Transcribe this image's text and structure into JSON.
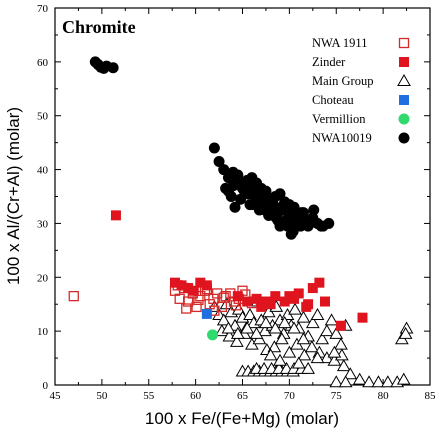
{
  "chart_data": {
    "type": "scatter",
    "title": "Chromite",
    "xlabel": "100 x Fe/(Fe+Mg) (molar)",
    "ylabel": "100 x Al/(Cr+Al) (molar)",
    "xlim": [
      45,
      85
    ],
    "ylim": [
      0,
      70
    ],
    "xticks": [
      "45",
      "50",
      "55",
      "60",
      "65",
      "70",
      "75",
      "80",
      "85"
    ],
    "yticks": [
      "0",
      "10",
      "20",
      "30",
      "40",
      "50",
      "60",
      "70"
    ],
    "legend_position": "top-right",
    "series": [
      {
        "name": "NWA 1911",
        "marker": "open-square",
        "color": "#d42a2a",
        "x": [
          47.0,
          57.8,
          58.3,
          58.8,
          59.2,
          59.7,
          60.1,
          60.5,
          61.0,
          61.5,
          61.9,
          62.3,
          62.8,
          63.2,
          63.7,
          64.1,
          64.6,
          65.0,
          58.1,
          59.0,
          60.3,
          61.2,
          62.0,
          63.0,
          64.3,
          65.3,
          66.0
        ],
        "y": [
          16.5,
          17.5,
          16.0,
          18.0,
          15.5,
          17.0,
          14.5,
          16.5,
          17.5,
          15.0,
          16.0,
          17.0,
          14.5,
          16.5,
          17.0,
          15.5,
          16.0,
          17.5,
          18.5,
          14.2,
          15.8,
          17.8,
          13.8,
          16.2,
          14.8,
          16.8,
          15.2
        ]
      },
      {
        "name": "Zinder",
        "marker": "filled-square",
        "color": "#e0141e",
        "x": [
          51.5,
          57.8,
          58.5,
          59.2,
          59.8,
          60.5,
          61.2,
          66.5,
          67.5,
          68.5,
          69.5,
          70.5,
          71.0,
          71.8,
          72.5,
          73.2,
          75.5,
          77.8,
          65.5,
          64.5,
          67.0,
          68.0,
          70.0,
          72.0,
          73.8
        ],
        "y": [
          31.5,
          19.0,
          18.5,
          18.0,
          17.5,
          19.0,
          18.5,
          16.0,
          15.5,
          16.5,
          15.5,
          16.0,
          17.0,
          14.5,
          18.0,
          19.0,
          11.0,
          12.5,
          15.5,
          16.5,
          14.5,
          15.0,
          16.5,
          15.0,
          15.5
        ]
      },
      {
        "name": "Main Group",
        "marker": "open-triangle",
        "color": "#000000",
        "x": [
          62.0,
          62.5,
          63.0,
          63.3,
          63.8,
          64.2,
          64.6,
          65.0,
          65.4,
          65.8,
          66.2,
          66.6,
          67.0,
          67.4,
          67.8,
          68.2,
          68.6,
          69.0,
          69.4,
          69.8,
          70.2,
          70.6,
          71.0,
          71.5,
          72.0,
          72.5,
          73.0,
          73.5,
          74.0,
          74.5,
          75.0,
          75.5,
          76.0,
          62.8,
          63.6,
          64.4,
          65.2,
          66.0,
          66.8,
          67.6,
          68.4,
          69.2,
          70.0,
          70.8,
          71.6,
          72.4,
          73.2,
          74.0,
          74.8,
          75.6,
          65.0,
          65.6,
          66.2,
          66.8,
          67.4,
          68.0,
          68.6,
          69.2,
          69.8,
          70.4,
          66.5,
          67.3,
          68.1,
          68.9,
          69.7,
          70.5,
          71.3,
          63.5,
          64.5,
          65.5,
          66.5,
          67.5,
          68.5,
          69.5,
          70.5,
          71.5,
          74.8,
          75.8,
          76.5,
          77.5,
          78.5,
          79.5,
          80.5,
          81.5,
          82.2,
          82.5,
          82.0,
          82.4,
          75.0,
          76.0,
          71.0,
          72.0,
          73.0,
          68.0,
          69.0
        ],
        "y": [
          14.5,
          13.0,
          12.0,
          15.0,
          13.5,
          11.0,
          14.0,
          12.5,
          10.5,
          13.0,
          11.5,
          15.5,
          12.0,
          10.0,
          13.5,
          11.0,
          14.5,
          12.0,
          9.5,
          13.0,
          11.0,
          14.0,
          10.5,
          12.5,
          9.0,
          11.5,
          13.0,
          8.5,
          10.0,
          12.0,
          9.5,
          7.5,
          11.0,
          10.0,
          9.0,
          8.0,
          9.5,
          7.5,
          8.5,
          6.5,
          7.0,
          8.5,
          6.0,
          7.5,
          5.5,
          7.0,
          6.0,
          5.0,
          4.5,
          5.5,
          2.5,
          2.5,
          2.5,
          2.5,
          2.5,
          2.5,
          2.5,
          2.5,
          2.5,
          2.5,
          3.0,
          3.0,
          3.0,
          3.0,
          3.0,
          3.0,
          3.0,
          10.5,
          9.5,
          10.5,
          9.5,
          11.5,
          10.5,
          11.5,
          10.5,
          8.5,
          6.0,
          3.5,
          2.0,
          1.0,
          0.5,
          0.5,
          0.5,
          0.5,
          1.0,
          10.5,
          8.5,
          9.5,
          0.5,
          0.5,
          4.0,
          3.0,
          5.0,
          5.5,
          4.5
        ]
      },
      {
        "name": "Choteau",
        "marker": "filled-square",
        "color": "#1f6fe0",
        "x": [
          61.2
        ],
        "y": [
          13.2
        ]
      },
      {
        "name": "Vermillion",
        "marker": "filled-circle",
        "color": "#2fd96f",
        "x": [
          61.8
        ],
        "y": [
          9.3
        ]
      },
      {
        "name": "NWA10019",
        "marker": "filled-circle",
        "color": "#000000",
        "x": [
          49.3,
          49.6,
          49.9,
          50.2,
          50.5,
          51.2,
          62.0,
          62.5,
          63.0,
          63.5,
          64.0,
          64.5,
          65.0,
          65.5,
          66.0,
          66.5,
          67.0,
          67.5,
          68.0,
          68.5,
          69.0,
          69.5,
          70.0,
          70.5,
          71.0,
          71.5,
          72.0,
          72.5,
          73.0,
          73.6,
          63.2,
          63.8,
          64.3,
          64.8,
          65.3,
          65.8,
          66.3,
          66.8,
          67.3,
          67.8,
          68.3,
          68.8,
          69.3,
          69.8,
          70.3,
          70.8,
          71.3,
          64.0,
          64.6,
          65.2,
          65.8,
          66.4,
          67.0,
          67.6,
          68.2,
          68.8,
          69.4,
          70.0,
          70.6,
          71.2,
          65.0,
          65.6,
          66.2,
          66.8,
          67.4,
          68.0,
          68.6,
          69.2,
          69.8,
          70.4,
          67.2,
          67.8,
          68.4,
          69.0,
          69.6,
          70.2,
          63.5,
          64.2,
          66.0,
          67.0,
          69.0,
          70.0,
          71.8,
          72.6,
          73.4,
          74.2
        ],
        "y": [
          60.0,
          59.5,
          59.0,
          58.8,
          59.2,
          58.9,
          44.0,
          41.5,
          40.0,
          38.5,
          37.0,
          39.0,
          36.5,
          38.0,
          35.5,
          37.5,
          34.5,
          36.0,
          33.5,
          35.0,
          32.5,
          34.0,
          31.5,
          33.0,
          30.5,
          32.0,
          29.5,
          31.0,
          30.0,
          29.5,
          36.5,
          35.0,
          37.5,
          34.5,
          36.0,
          33.5,
          35.5,
          32.5,
          34.5,
          31.5,
          33.5,
          30.5,
          32.5,
          29.5,
          31.5,
          30.0,
          32.0,
          39.5,
          38.0,
          36.0,
          37.0,
          34.0,
          35.0,
          33.0,
          34.0,
          32.0,
          33.0,
          31.0,
          31.5,
          29.5,
          37.0,
          35.5,
          33.5,
          36.0,
          32.5,
          34.5,
          31.0,
          33.0,
          30.0,
          28.5,
          34.0,
          31.5,
          32.5,
          29.5,
          30.5,
          28.0,
          36.0,
          33.0,
          38.5,
          36.5,
          35.5,
          33.5,
          30.5,
          32.5,
          29.5,
          30.0
        ]
      }
    ]
  }
}
